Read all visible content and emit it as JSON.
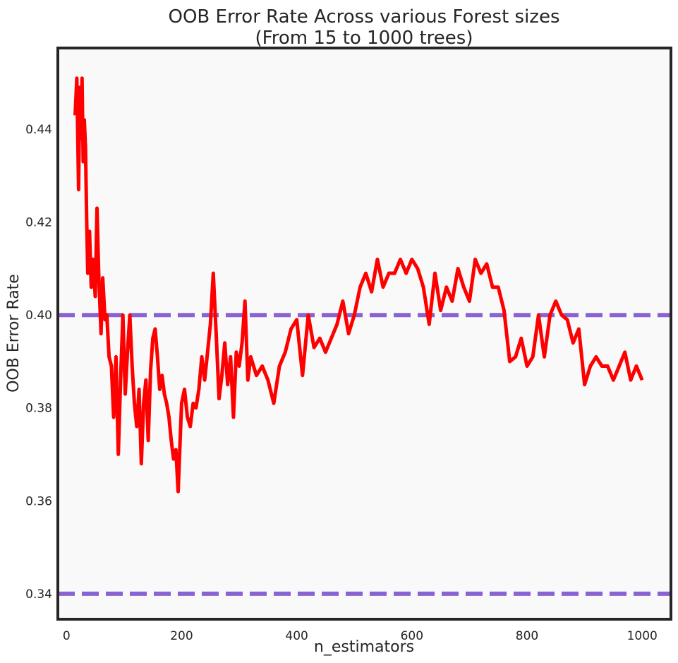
{
  "chart_data": {
    "type": "line",
    "title_line1": "OOB Error Rate Across various Forest sizes",
    "title_line2": "(From 15 to 1000 trees)",
    "xlabel": "n_estimators",
    "ylabel": "OOB Error Rate",
    "xlim": [
      -15,
      1050
    ],
    "ylim": [
      0.3345,
      0.4575
    ],
    "x_ticks": [
      0,
      200,
      400,
      600,
      800,
      1000
    ],
    "x_tick_labels": [
      "0",
      "200",
      "400",
      "600",
      "800",
      "1000"
    ],
    "y_ticks": [
      0.34,
      0.36,
      0.38,
      0.4,
      0.42,
      0.44
    ],
    "y_tick_labels": [
      "0.34",
      "0.36",
      "0.38",
      "0.40",
      "0.42",
      "0.44"
    ],
    "grid": false,
    "hlines": [
      {
        "y": 0.4,
        "color": "#8a63d2",
        "style": "dashed"
      },
      {
        "y": 0.34,
        "color": "#8a63d2",
        "style": "dashed"
      }
    ],
    "series": [
      {
        "color": "#ff0000",
        "x": [
          15,
          18,
          21,
          23,
          25,
          27,
          29,
          31,
          33,
          35,
          37,
          40,
          43,
          46,
          50,
          53,
          56,
          60,
          63,
          67,
          70,
          74,
          78,
          82,
          86,
          90,
          94,
          98,
          102,
          106,
          110,
          114,
          118,
          122,
          126,
          130,
          134,
          138,
          142,
          146,
          150,
          154,
          158,
          162,
          166,
          170,
          174,
          178,
          182,
          186,
          190,
          194,
          200,
          205,
          210,
          215,
          220,
          225,
          230,
          235,
          240,
          245,
          250,
          255,
          260,
          265,
          270,
          275,
          280,
          285,
          290,
          295,
          300,
          305,
          310,
          315,
          320,
          330,
          340,
          350,
          360,
          370,
          380,
          390,
          400,
          410,
          420,
          430,
          440,
          450,
          460,
          470,
          480,
          490,
          500,
          510,
          520,
          530,
          540,
          550,
          560,
          570,
          580,
          590,
          600,
          610,
          620,
          630,
          640,
          650,
          660,
          670,
          680,
          690,
          700,
          710,
          720,
          730,
          740,
          750,
          760,
          770,
          780,
          790,
          800,
          810,
          820,
          830,
          840,
          850,
          860,
          870,
          880,
          890,
          900,
          910,
          920,
          930,
          940,
          950,
          960,
          970,
          980,
          990,
          1000
        ],
        "y": [
          0.443,
          0.451,
          0.427,
          0.449,
          0.438,
          0.451,
          0.433,
          0.442,
          0.436,
          0.421,
          0.409,
          0.418,
          0.406,
          0.412,
          0.404,
          0.423,
          0.409,
          0.396,
          0.408,
          0.399,
          0.4,
          0.391,
          0.389,
          0.378,
          0.391,
          0.37,
          0.386,
          0.4,
          0.383,
          0.392,
          0.4,
          0.389,
          0.381,
          0.376,
          0.384,
          0.368,
          0.381,
          0.386,
          0.373,
          0.388,
          0.395,
          0.397,
          0.391,
          0.384,
          0.387,
          0.383,
          0.381,
          0.378,
          0.373,
          0.369,
          0.371,
          0.362,
          0.381,
          0.384,
          0.378,
          0.376,
          0.381,
          0.38,
          0.384,
          0.391,
          0.386,
          0.392,
          0.398,
          0.409,
          0.396,
          0.382,
          0.387,
          0.394,
          0.385,
          0.391,
          0.378,
          0.392,
          0.389,
          0.394,
          0.403,
          0.386,
          0.391,
          0.387,
          0.389,
          0.386,
          0.381,
          0.389,
          0.392,
          0.397,
          0.399,
          0.387,
          0.4,
          0.393,
          0.395,
          0.392,
          0.395,
          0.398,
          0.403,
          0.396,
          0.4,
          0.406,
          0.409,
          0.405,
          0.412,
          0.406,
          0.409,
          0.409,
          0.412,
          0.409,
          0.412,
          0.41,
          0.406,
          0.398,
          0.409,
          0.401,
          0.406,
          0.403,
          0.41,
          0.406,
          0.403,
          0.412,
          0.409,
          0.411,
          0.406,
          0.406,
          0.401,
          0.39,
          0.391,
          0.395,
          0.389,
          0.391,
          0.4,
          0.391,
          0.4,
          0.403,
          0.4,
          0.399,
          0.394,
          0.397,
          0.385,
          0.389,
          0.391,
          0.389,
          0.389,
          0.386,
          0.389,
          0.392,
          0.386,
          0.389,
          0.386
        ]
      }
    ]
  }
}
